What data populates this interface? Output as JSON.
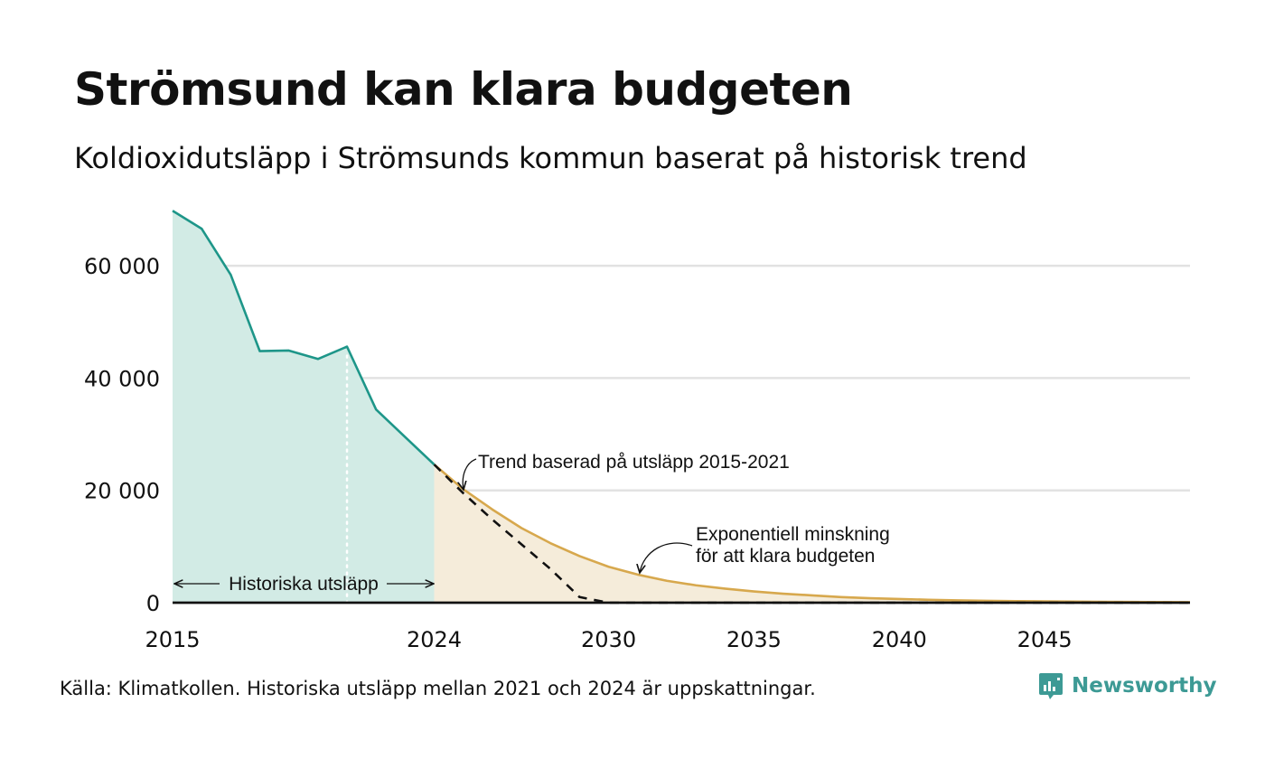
{
  "title": "Strömsund kan klara budgeten",
  "subtitle": "Koldioxidutsläpp i Strömsunds kommun baserat på historisk trend",
  "source": "Källa: Klimatkollen. Historiska utsläpp mellan 2021 och 2024 är uppskattningar.",
  "brand": {
    "name": "Newsworthy",
    "icon": "bar-chart-logo-icon"
  },
  "colors": {
    "historic_line": "#1e9689",
    "historic_fill": "#d2ebe5",
    "budget_line": "#d7a84d",
    "budget_fill": "#f5ecda",
    "trend_line": "#111111",
    "grid": "#e2e2e2",
    "brand": "#3d9a95"
  },
  "chart_data": {
    "type": "area",
    "xlim": [
      2015,
      2050
    ],
    "ylim": [
      0,
      70000
    ],
    "x_ticks": [
      2015,
      2024,
      2030,
      2035,
      2040,
      2045
    ],
    "x_tick_labels": [
      "2015",
      "2024",
      "2030",
      "2035",
      "2040",
      "2045"
    ],
    "y_ticks": [
      0,
      20000,
      40000,
      60000
    ],
    "y_tick_labels": [
      "0",
      "20 000",
      "40 000",
      "60 000"
    ],
    "grid": true,
    "series": [
      {
        "key": "historic",
        "x": [
          2015,
          2016,
          2017,
          2018,
          2019,
          2020,
          2021,
          2022,
          2023,
          2024
        ],
        "y": [
          69800,
          66600,
          58400,
          44800,
          44900,
          43400,
          45600,
          34400,
          29500,
          24600
        ]
      },
      {
        "key": "trend",
        "x": [
          2024,
          2025,
          2026,
          2027,
          2028,
          2029,
          2030,
          2035,
          2040,
          2045,
          2050
        ],
        "y": [
          24600,
          19500,
          14800,
          10400,
          6000,
          1000,
          0,
          0,
          0,
          0,
          0
        ]
      },
      {
        "key": "budget",
        "x": [
          2024,
          2025,
          2026,
          2027,
          2028,
          2029,
          2030,
          2031,
          2032,
          2033,
          2034,
          2035,
          2036,
          2037,
          2038,
          2039,
          2040,
          2041,
          2042,
          2043,
          2044,
          2045,
          2046,
          2047,
          2048,
          2049,
          2050
        ],
        "y": [
          24600,
          20200,
          16600,
          13300,
          10600,
          8300,
          6400,
          5000,
          3900,
          3100,
          2500,
          2000,
          1600,
          1300,
          1000,
          800,
          650,
          520,
          420,
          340,
          280,
          230,
          190,
          160,
          130,
          110,
          90
        ]
      }
    ],
    "highlight_year": 2021,
    "annotations": {
      "historic": "Historiska utsläpp",
      "trend": "Trend baserad på utsläpp 2015-2021",
      "budget_line1": "Exponentiell minskning",
      "budget_line2": "för att klara budgeten"
    }
  }
}
